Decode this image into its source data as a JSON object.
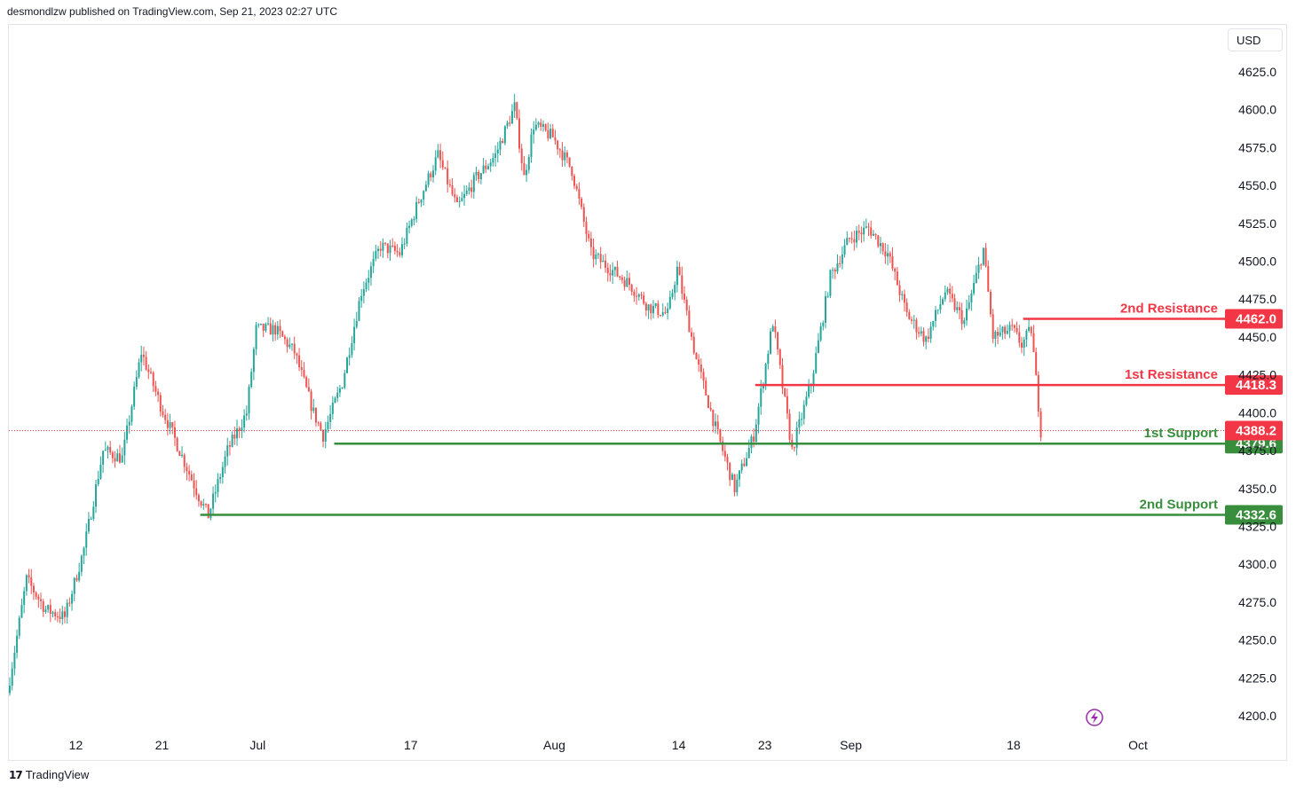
{
  "header": {
    "text": "desmondlzw published on TradingView.com, Sep 21, 2023 02:27 UTC"
  },
  "currency_button": {
    "label": "USD"
  },
  "footer": {
    "brand": "TradingView",
    "logo_glyph": "17"
  },
  "colors": {
    "up": "#26a69a",
    "down": "#ef5350",
    "resistance": "#f23645",
    "support": "#388e3c",
    "current_price_line": "#f23645",
    "lightning": "#9c27b0"
  },
  "chart_data": {
    "type": "candlestick",
    "title": "",
    "y_axis": {
      "ylim": [
        4193,
        4638
      ],
      "ticks": [
        4200.0,
        4225.0,
        4250.0,
        4275.0,
        4300.0,
        4325.0,
        4350.0,
        4375.0,
        4400.0,
        4425.0,
        4450.0,
        4475.0,
        4500.0,
        4525.0,
        4550.0,
        4575.0,
        4600.0,
        4625.0
      ],
      "tick_labels": [
        "4200.0",
        "4225.0",
        "4250.0",
        "4275.0",
        "4300.0",
        "4325.0",
        "4350.0",
        "4375.0",
        "4400.0",
        "4425.0",
        "4450.0",
        "4475.0",
        "4500.0",
        "4525.0",
        "4550.0",
        "4575.0",
        "4600.0",
        "4625.0"
      ]
    },
    "x_axis": {
      "xlim": [
        "2023-06-05",
        "2023-10-05"
      ],
      "tick_labels": [
        {
          "date": "2023-06-12",
          "label": "12"
        },
        {
          "date": "2023-06-21",
          "label": "21"
        },
        {
          "date": "2023-07-01",
          "label": "Jul"
        },
        {
          "date": "2023-07-17",
          "label": "17"
        },
        {
          "date": "2023-08-01",
          "label": "Aug"
        },
        {
          "date": "2023-08-14",
          "label": "14"
        },
        {
          "date": "2023-08-23",
          "label": "23"
        },
        {
          "date": "2023-09-01",
          "label": "Sep"
        },
        {
          "date": "2023-09-18",
          "label": "18"
        },
        {
          "date": "2023-10-01",
          "label": "Oct"
        }
      ]
    },
    "price_path": [
      {
        "t": "2023-06-05",
        "v": 4215
      },
      {
        "t": "2023-06-07",
        "v": 4290
      },
      {
        "t": "2023-06-09",
        "v": 4270
      },
      {
        "t": "2023-06-11",
        "v": 4265
      },
      {
        "t": "2023-06-13",
        "v": 4310
      },
      {
        "t": "2023-06-15",
        "v": 4375
      },
      {
        "t": "2023-06-17",
        "v": 4370
      },
      {
        "t": "2023-06-19",
        "v": 4440
      },
      {
        "t": "2023-06-21",
        "v": 4405
      },
      {
        "t": "2023-06-23",
        "v": 4375
      },
      {
        "t": "2023-06-25",
        "v": 4345
      },
      {
        "t": "2023-06-26",
        "v": 4332
      },
      {
        "t": "2023-06-28",
        "v": 4375
      },
      {
        "t": "2023-06-30",
        "v": 4400
      },
      {
        "t": "2023-07-01",
        "v": 4455
      },
      {
        "t": "2023-07-03",
        "v": 4455
      },
      {
        "t": "2023-07-05",
        "v": 4440
      },
      {
        "t": "2023-07-07",
        "v": 4400
      },
      {
        "t": "2023-07-08",
        "v": 4385
      },
      {
        "t": "2023-07-10",
        "v": 4420
      },
      {
        "t": "2023-07-12",
        "v": 4480
      },
      {
        "t": "2023-07-14",
        "v": 4510
      },
      {
        "t": "2023-07-16",
        "v": 4505
      },
      {
        "t": "2023-07-18",
        "v": 4540
      },
      {
        "t": "2023-07-20",
        "v": 4570
      },
      {
        "t": "2023-07-22",
        "v": 4535
      },
      {
        "t": "2023-07-24",
        "v": 4555
      },
      {
        "t": "2023-07-26",
        "v": 4570
      },
      {
        "t": "2023-07-28",
        "v": 4602
      },
      {
        "t": "2023-07-29",
        "v": 4555
      },
      {
        "t": "2023-07-30",
        "v": 4590
      },
      {
        "t": "2023-08-01",
        "v": 4582
      },
      {
        "t": "2023-08-03",
        "v": 4560
      },
      {
        "t": "2023-08-05",
        "v": 4505
      },
      {
        "t": "2023-08-07",
        "v": 4495
      },
      {
        "t": "2023-08-09",
        "v": 4485
      },
      {
        "t": "2023-08-11",
        "v": 4470
      },
      {
        "t": "2023-08-13",
        "v": 4465
      },
      {
        "t": "2023-08-14",
        "v": 4495
      },
      {
        "t": "2023-08-16",
        "v": 4435
      },
      {
        "t": "2023-08-18",
        "v": 4390
      },
      {
        "t": "2023-08-20",
        "v": 4350
      },
      {
        "t": "2023-08-22",
        "v": 4385
      },
      {
        "t": "2023-08-24",
        "v": 4460
      },
      {
        "t": "2023-08-26",
        "v": 4375
      },
      {
        "t": "2023-08-28",
        "v": 4420
      },
      {
        "t": "2023-08-30",
        "v": 4490
      },
      {
        "t": "2023-09-01",
        "v": 4515
      },
      {
        "t": "2023-09-03",
        "v": 4522
      },
      {
        "t": "2023-09-05",
        "v": 4505
      },
      {
        "t": "2023-09-07",
        "v": 4465
      },
      {
        "t": "2023-09-09",
        "v": 4448
      },
      {
        "t": "2023-09-11",
        "v": 4480
      },
      {
        "t": "2023-09-13",
        "v": 4460
      },
      {
        "t": "2023-09-15",
        "v": 4508
      },
      {
        "t": "2023-09-16",
        "v": 4450
      },
      {
        "t": "2023-09-18",
        "v": 4455
      },
      {
        "t": "2023-09-19",
        "v": 4445
      },
      {
        "t": "2023-09-20",
        "v": 4455
      },
      {
        "t": "2023-09-21",
        "v": 4388.2
      }
    ],
    "levels": [
      {
        "name": "2nd Resistance",
        "value": 4462.0,
        "tag": "4462.0",
        "kind": "resistance",
        "start": "2023-09-19"
      },
      {
        "name": "1st Resistance",
        "value": 4418.3,
        "tag": "4418.3",
        "kind": "resistance",
        "start": "2023-08-22"
      },
      {
        "name": "1st Support",
        "value": 4379.6,
        "tag": "4379.6",
        "kind": "support",
        "start": "2023-07-09"
      },
      {
        "name": "2nd Support",
        "value": 4332.6,
        "tag": "4332.6",
        "kind": "support",
        "start": "2023-06-25"
      }
    ],
    "current_price": {
      "value": 4388.2,
      "tag": "4388.2"
    }
  }
}
